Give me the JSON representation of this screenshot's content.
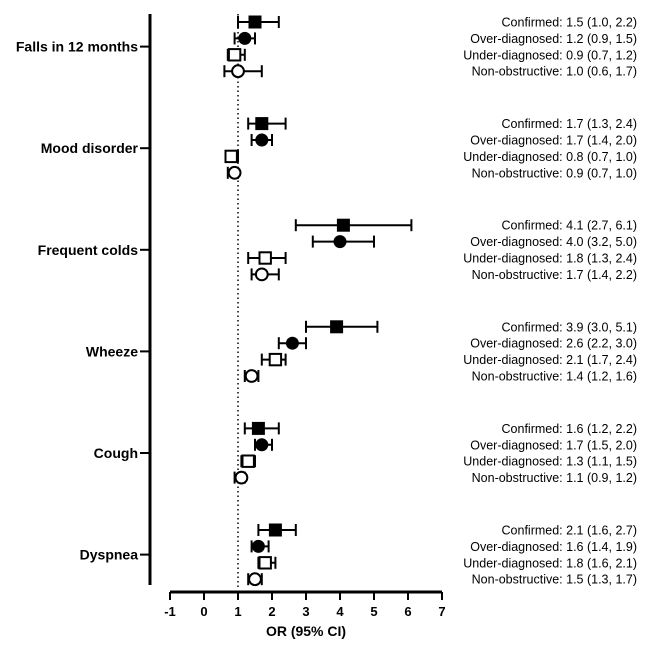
{
  "chart_data": {
    "type": "scatter",
    "title": "",
    "xlabel": "OR (95% CI)",
    "ylabel": "",
    "xlim": [
      -1,
      7
    ],
    "x_ticks": [
      "-1",
      "0",
      "1",
      "2",
      "3",
      "4",
      "5",
      "6",
      "7"
    ],
    "reference_line": 1,
    "grid": false,
    "legend": "none",
    "categories": [
      "Falls in 12 months",
      "Mood disorder",
      "Frequent colds",
      "Wheeze",
      "Cough",
      "Dyspnea"
    ],
    "series": [
      {
        "marker": "filled-square",
        "estimates": [
          {
            "or": 1.5,
            "lo": 1.0,
            "hi": 2.2,
            "label": "Confirmed: 1.5 (1.0, 2.2)"
          },
          {
            "or": 1.7,
            "lo": 1.3,
            "hi": 2.4,
            "label": "Confirmed: 1.7 (1.3, 2.4)"
          },
          {
            "or": 4.1,
            "lo": 2.7,
            "hi": 6.1,
            "label": "Confirmed: 4.1 (2.7, 6.1)"
          },
          {
            "or": 3.9,
            "lo": 3.0,
            "hi": 5.1,
            "label": "Confirmed: 3.9 (3.0, 5.1)"
          },
          {
            "or": 1.6,
            "lo": 1.2,
            "hi": 2.2,
            "label": "Confirmed: 1.6 (1.2, 2.2)"
          },
          {
            "or": 2.1,
            "lo": 1.6,
            "hi": 2.7,
            "label": "Confirmed: 2.1 (1.6, 2.7)"
          }
        ]
      },
      {
        "marker": "filled-circle",
        "estimates": [
          {
            "or": 1.2,
            "lo": 0.9,
            "hi": 1.5,
            "label": "Over-diagnosed: 1.2 (0.9, 1.5)"
          },
          {
            "or": 1.7,
            "lo": 1.4,
            "hi": 2.0,
            "label": "Over-diagnosed: 1.7 (1.4, 2.0)"
          },
          {
            "or": 4.0,
            "lo": 3.2,
            "hi": 5.0,
            "label": "Over-diagnosed: 4.0 (3.2, 5.0)"
          },
          {
            "or": 2.6,
            "lo": 2.2,
            "hi": 3.0,
            "label": "Over-diagnosed: 2.6 (2.2, 3.0)"
          },
          {
            "or": 1.7,
            "lo": 1.5,
            "hi": 2.0,
            "label": "Over-diagnosed: 1.7 (1.5, 2.0)"
          },
          {
            "or": 1.6,
            "lo": 1.4,
            "hi": 1.9,
            "label": "Over-diagnosed: 1.6 (1.4, 1.9)"
          }
        ]
      },
      {
        "marker": "open-square",
        "estimates": [
          {
            "or": 0.9,
            "lo": 0.7,
            "hi": 1.2,
            "label": "Under-diagnosed: 0.9 (0.7, 1.2)"
          },
          {
            "or": 0.8,
            "lo": 0.7,
            "hi": 1.0,
            "label": "Under-diagnosed: 0.8 (0.7, 1.0)"
          },
          {
            "or": 1.8,
            "lo": 1.3,
            "hi": 2.4,
            "label": "Under-diagnosed: 1.8 (1.3, 2.4)"
          },
          {
            "or": 2.1,
            "lo": 1.7,
            "hi": 2.4,
            "label": "Under-diagnosed: 2.1 (1.7, 2.4)"
          },
          {
            "or": 1.3,
            "lo": 1.1,
            "hi": 1.5,
            "label": "Under-diagnosed: 1.3 (1.1, 1.5)"
          },
          {
            "or": 1.8,
            "lo": 1.6,
            "hi": 2.1,
            "label": "Under-diagnosed: 1.8 (1.6, 2.1)"
          }
        ]
      },
      {
        "marker": "open-circle",
        "estimates": [
          {
            "or": 1.0,
            "lo": 0.6,
            "hi": 1.7,
            "label": "Non-obstructive: 1.0 (0.6, 1.7)"
          },
          {
            "or": 0.9,
            "lo": 0.7,
            "hi": 1.0,
            "label": "Non-obstructive: 0.9 (0.7, 1.0)"
          },
          {
            "or": 1.7,
            "lo": 1.4,
            "hi": 2.2,
            "label": "Non-obstructive: 1.7 (1.4, 2.2)"
          },
          {
            "or": 1.4,
            "lo": 1.2,
            "hi": 1.6,
            "label": "Non-obstructive: 1.4 (1.2, 1.6)"
          },
          {
            "or": 1.1,
            "lo": 0.9,
            "hi": 1.2,
            "label": "Non-obstructive: 1.1 (0.9, 1.2)"
          },
          {
            "or": 1.5,
            "lo": 1.3,
            "hi": 1.7,
            "label": "Non-obstructive: 1.5 (1.3, 1.7)"
          }
        ]
      }
    ]
  }
}
